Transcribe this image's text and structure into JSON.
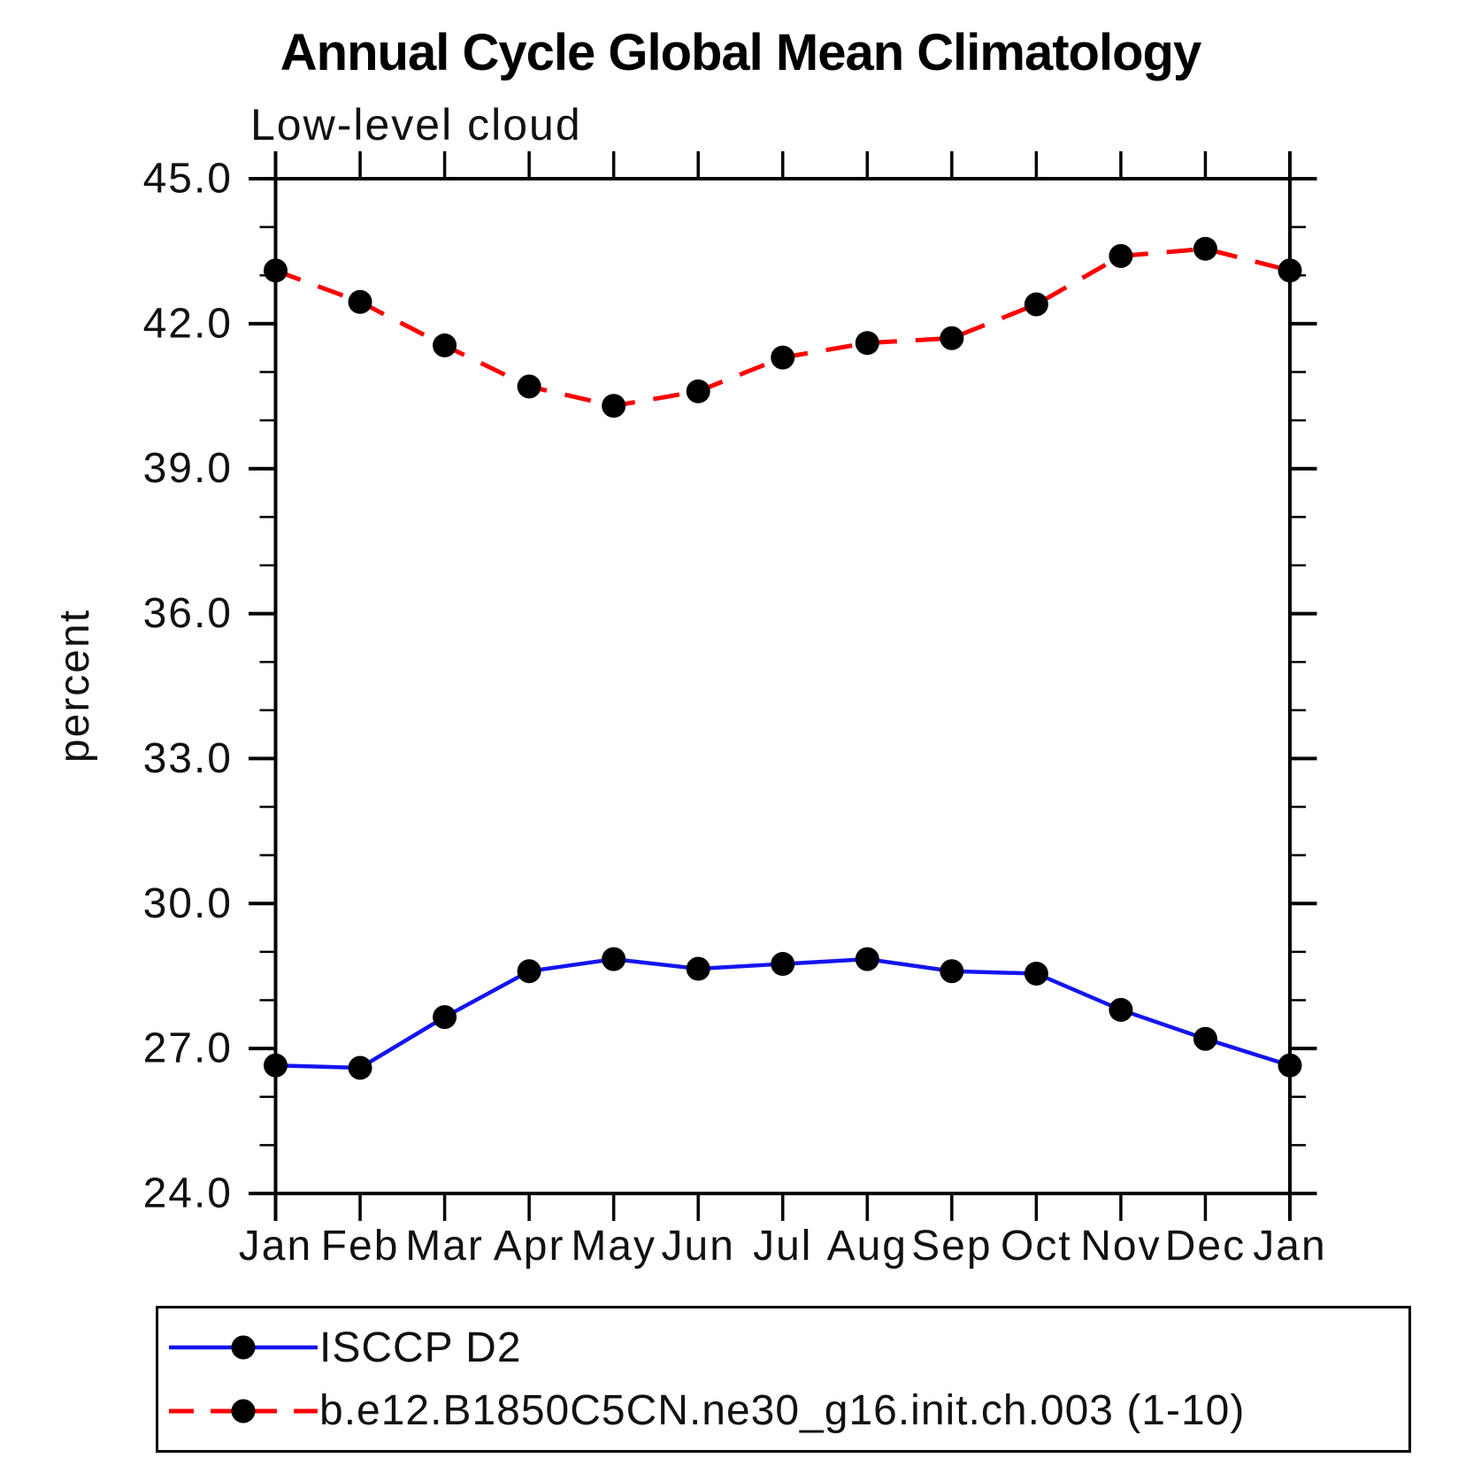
{
  "title": "Annual Cycle Global Mean Climatology",
  "subtitle": "Low-level cloud",
  "chart_data": {
    "type": "line",
    "categories": [
      "Jan",
      "Feb",
      "Mar",
      "Apr",
      "May",
      "Jun",
      "Jul",
      "Aug",
      "Sep",
      "Oct",
      "Nov",
      "Dec",
      "Jan"
    ],
    "xlabel": "",
    "ylabel": "percent",
    "ylim": [
      24.0,
      45.0
    ],
    "ytick_major_step": 3.0,
    "ytick_minor_step": 1.0,
    "ytick_labels": [
      "45.0",
      "42.0",
      "39.0",
      "36.0",
      "33.0",
      "30.0",
      "27.0",
      "24.0"
    ],
    "grid": false,
    "legend_position": "bottom-left-outside-box",
    "series": [
      {
        "name": "ISCCP D2",
        "line_style": "solid",
        "line_color": "#1414f0",
        "marker": "circle",
        "marker_color": "#000000",
        "values": [
          26.65,
          26.6,
          27.65,
          28.6,
          28.85,
          28.65,
          28.75,
          28.85,
          28.6,
          28.55,
          27.8,
          27.2,
          26.65
        ]
      },
      {
        "name": "b.e12.B1850C5CN.ne30_g16.init.ch.003 (1-10)",
        "line_style": "dashed",
        "line_color": "#ff0000",
        "marker": "circle",
        "marker_color": "#000000",
        "values": [
          43.1,
          42.45,
          41.55,
          40.7,
          40.3,
          40.6,
          41.3,
          41.6,
          41.7,
          42.4,
          43.4,
          43.55,
          43.1
        ]
      }
    ],
    "axis_color": "#000000",
    "background_color": "#ffffff"
  }
}
